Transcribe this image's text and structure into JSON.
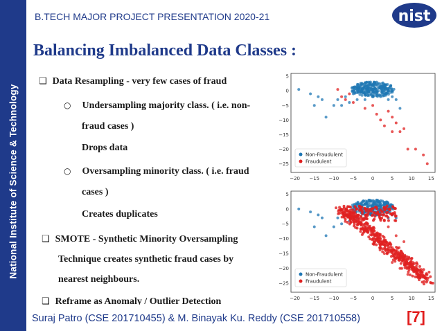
{
  "header": {
    "title": "B.TECH  MAJOR PROJECT PRESENTATION 2020-21",
    "logo_text": "nist"
  },
  "sidebar": {
    "text": "National Institute of Science & Technology"
  },
  "slide": {
    "title": "Balancing Imbalanced Data Classes :",
    "bullets": [
      {
        "marker": "❑",
        "text": "Data Resampling - very few cases of fraud"
      },
      {
        "marker": "○",
        "text": "Undersampling majority class. ( i.e. non-"
      },
      {
        "marker": "",
        "text": "fraud cases )"
      },
      {
        "marker": "",
        "text": "Drops data"
      },
      {
        "marker": "○",
        "text": "Oversampling minority class. ( i.e. fraud"
      },
      {
        "marker": "",
        "text": "cases )"
      },
      {
        "marker": "",
        "text": "Creates duplicates"
      },
      {
        "marker": "❑",
        "text": "SMOTE - Synthetic Minority Oversampling"
      },
      {
        "marker": "",
        "text": "Technique creates synthetic fraud cases by"
      },
      {
        "marker": "",
        "text": "nearest neighbours."
      },
      {
        "marker": "❑",
        "text": "Reframe as Anomaly / Outlier Detection"
      }
    ]
  },
  "footer": {
    "authors": "Suraj Patro (CSE 201710455) & M. Binayak Ku. Reddy (CSE 201710558)",
    "page": "[7]"
  },
  "colors": {
    "brand_blue": "#1f3a8a",
    "accent_red": "#e11d1d",
    "non_fraud": "#1f77b4",
    "fraud": "#e02020"
  },
  "chart_data": [
    {
      "type": "scatter",
      "xticks": [
        "−20",
        "−15",
        "−10",
        "−5",
        "0",
        "5",
        "10",
        "15"
      ],
      "yticks": [
        "5",
        "0",
        "−5",
        "−10",
        "−15",
        "−20",
        "−25"
      ],
      "xlim": [
        -21,
        16
      ],
      "ylim": [
        -28,
        6
      ],
      "legend": [
        "Non-Fraudulent",
        "Fraudulent"
      ],
      "legend_placement": "bottom-left",
      "series": [
        {
          "name": "Non-Fraudulent",
          "points": [
            [
              -19,
              0.5
            ],
            [
              -16,
              -1
            ],
            [
              -14,
              -2
            ],
            [
              -12,
              -9
            ],
            [
              -9,
              -3
            ],
            [
              -8,
              -5
            ],
            [
              -7,
              -2
            ],
            [
              -6,
              -4
            ],
            [
              -5,
              -1
            ],
            [
              -4,
              -3
            ],
            [
              -3,
              0
            ],
            [
              -2,
              -1
            ],
            [
              -1,
              1
            ],
            [
              0,
              2
            ],
            [
              1,
              0
            ],
            [
              2,
              1
            ],
            [
              3,
              -1
            ],
            [
              4,
              0
            ],
            [
              5,
              -2
            ],
            [
              6,
              -3
            ],
            [
              -3,
              2
            ],
            [
              -1,
              3
            ],
            [
              1,
              3
            ],
            [
              2,
              -2
            ],
            [
              -2,
              -3
            ],
            [
              0,
              -2
            ],
            [
              3,
              2
            ],
            [
              4,
              -3
            ],
            [
              7,
              -6
            ],
            [
              -10,
              -5
            ],
            [
              -13,
              -3
            ],
            [
              -15,
              -5
            ]
          ]
        },
        {
          "name": "Fraudulent",
          "points": [
            [
              -9,
              0.5
            ],
            [
              -8,
              -2
            ],
            [
              -7,
              -3
            ],
            [
              -5,
              -4
            ],
            [
              -2,
              -6
            ],
            [
              1,
              -8
            ],
            [
              2,
              -10
            ],
            [
              3,
              -12
            ],
            [
              5,
              -9
            ],
            [
              6,
              -11
            ],
            [
              7,
              -14
            ],
            [
              8,
              -13
            ],
            [
              9,
              -20
            ],
            [
              11,
              -20
            ],
            [
              13,
              -22
            ],
            [
              14,
              -25
            ],
            [
              -6,
              -1
            ],
            [
              0,
              -5
            ],
            [
              4,
              -7
            ],
            [
              5,
              -14
            ]
          ]
        }
      ]
    },
    {
      "type": "scatter",
      "xticks": [
        "−20",
        "−15",
        "−10",
        "−5",
        "0",
        "5",
        "10",
        "15"
      ],
      "yticks": [
        "5",
        "0",
        "−5",
        "−10",
        "−15",
        "−20",
        "−25"
      ],
      "xlim": [
        -21,
        16
      ],
      "ylim": [
        -28,
        6
      ],
      "legend": [
        "Non-Fraudulent",
        "Fraudulent"
      ],
      "legend_placement": "bottom-left",
      "series": [
        {
          "name": "Non-Fraudulent",
          "points": [
            [
              -19,
              0
            ],
            [
              -16,
              -1
            ],
            [
              -14,
              -2
            ],
            [
              -12,
              -9
            ],
            [
              -9,
              -3
            ],
            [
              -8,
              -5
            ],
            [
              -7,
              -2
            ],
            [
              -6,
              -4
            ],
            [
              -5,
              -1
            ],
            [
              -4,
              -3
            ],
            [
              -3,
              0
            ],
            [
              -2,
              -1
            ],
            [
              -1,
              1
            ],
            [
              0,
              2
            ],
            [
              1,
              0
            ],
            [
              2,
              1
            ],
            [
              3,
              -1
            ],
            [
              4,
              0
            ],
            [
              5,
              -2
            ],
            [
              6,
              -3
            ],
            [
              -3,
              2
            ],
            [
              -1,
              3
            ],
            [
              1,
              3
            ],
            [
              2,
              -2
            ],
            [
              -2,
              -3
            ],
            [
              0,
              -2
            ],
            [
              3,
              2
            ],
            [
              4,
              -3
            ],
            [
              -10,
              -6
            ],
            [
              -13,
              -3
            ],
            [
              -15,
              -6
            ]
          ]
        },
        {
          "name": "Fraudulent",
          "points": [
            [
              -8,
              0
            ],
            [
              -6,
              -2
            ],
            [
              -4,
              -4
            ],
            [
              -2,
              -6
            ],
            [
              0,
              -8
            ],
            [
              2,
              -10
            ],
            [
              4,
              -12
            ],
            [
              6,
              -14
            ],
            [
              8,
              -16
            ],
            [
              10,
              -19
            ],
            [
              12,
              -21
            ],
            [
              14,
              -24
            ],
            [
              -7,
              -1
            ],
            [
              -5,
              -3
            ],
            [
              -3,
              -5
            ],
            [
              -1,
              -7
            ],
            [
              1,
              -9
            ],
            [
              3,
              -11
            ],
            [
              5,
              -13
            ],
            [
              7,
              -15
            ],
            [
              9,
              -17
            ],
            [
              11,
              -20
            ],
            [
              13,
              -23
            ],
            [
              -4,
              0
            ],
            [
              0,
              -2
            ],
            [
              4,
              -6
            ],
            [
              6,
              -9
            ],
            [
              8,
              -11
            ],
            [
              3,
              -15
            ],
            [
              5,
              -18
            ],
            [
              7,
              -20
            ],
            [
              9,
              -22
            ]
          ]
        }
      ]
    }
  ]
}
